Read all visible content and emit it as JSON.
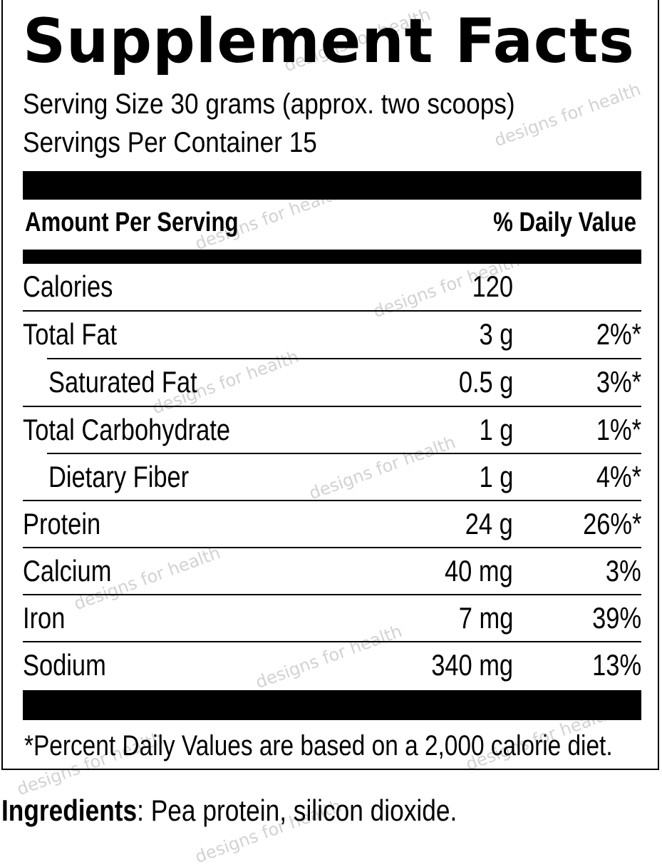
{
  "title": "Supplement Facts",
  "serving_size": "Serving Size 30 grams (approx. two scoops)",
  "servings_per_container": "Servings Per Container 15",
  "header_left": "Amount Per Serving",
  "header_right": "% Daily Value",
  "rows": [
    {
      "name": "Calories",
      "amount": "120",
      "dv": ""
    },
    {
      "name": "Total Fat",
      "amount": "3 g",
      "dv": "2%*"
    },
    {
      "name": "Saturated Fat",
      "amount": "0.5 g",
      "dv": "3%*"
    },
    {
      "name": "Total Carbohydrate",
      "amount": "1 g",
      "dv": "1%*"
    },
    {
      "name": "Dietary Fiber",
      "amount": "1 g",
      "dv": "4%*"
    },
    {
      "name": "Protein",
      "amount": "24 g",
      "dv": "26%*"
    },
    {
      "name": "Calcium",
      "amount": "40 mg",
      "dv": "3%"
    },
    {
      "name": "Iron",
      "amount": "7 mg",
      "dv": "39%"
    },
    {
      "name": "Sodium",
      "amount": "340 mg",
      "dv": "13%"
    }
  ],
  "footnote": "*Percent Daily Values are based on a 2,000 calorie diet.",
  "ingredients_label": "Ingredients",
  "ingredients_text": ": Pea protein, silicon dioxide.",
  "watermark": "designs for health"
}
